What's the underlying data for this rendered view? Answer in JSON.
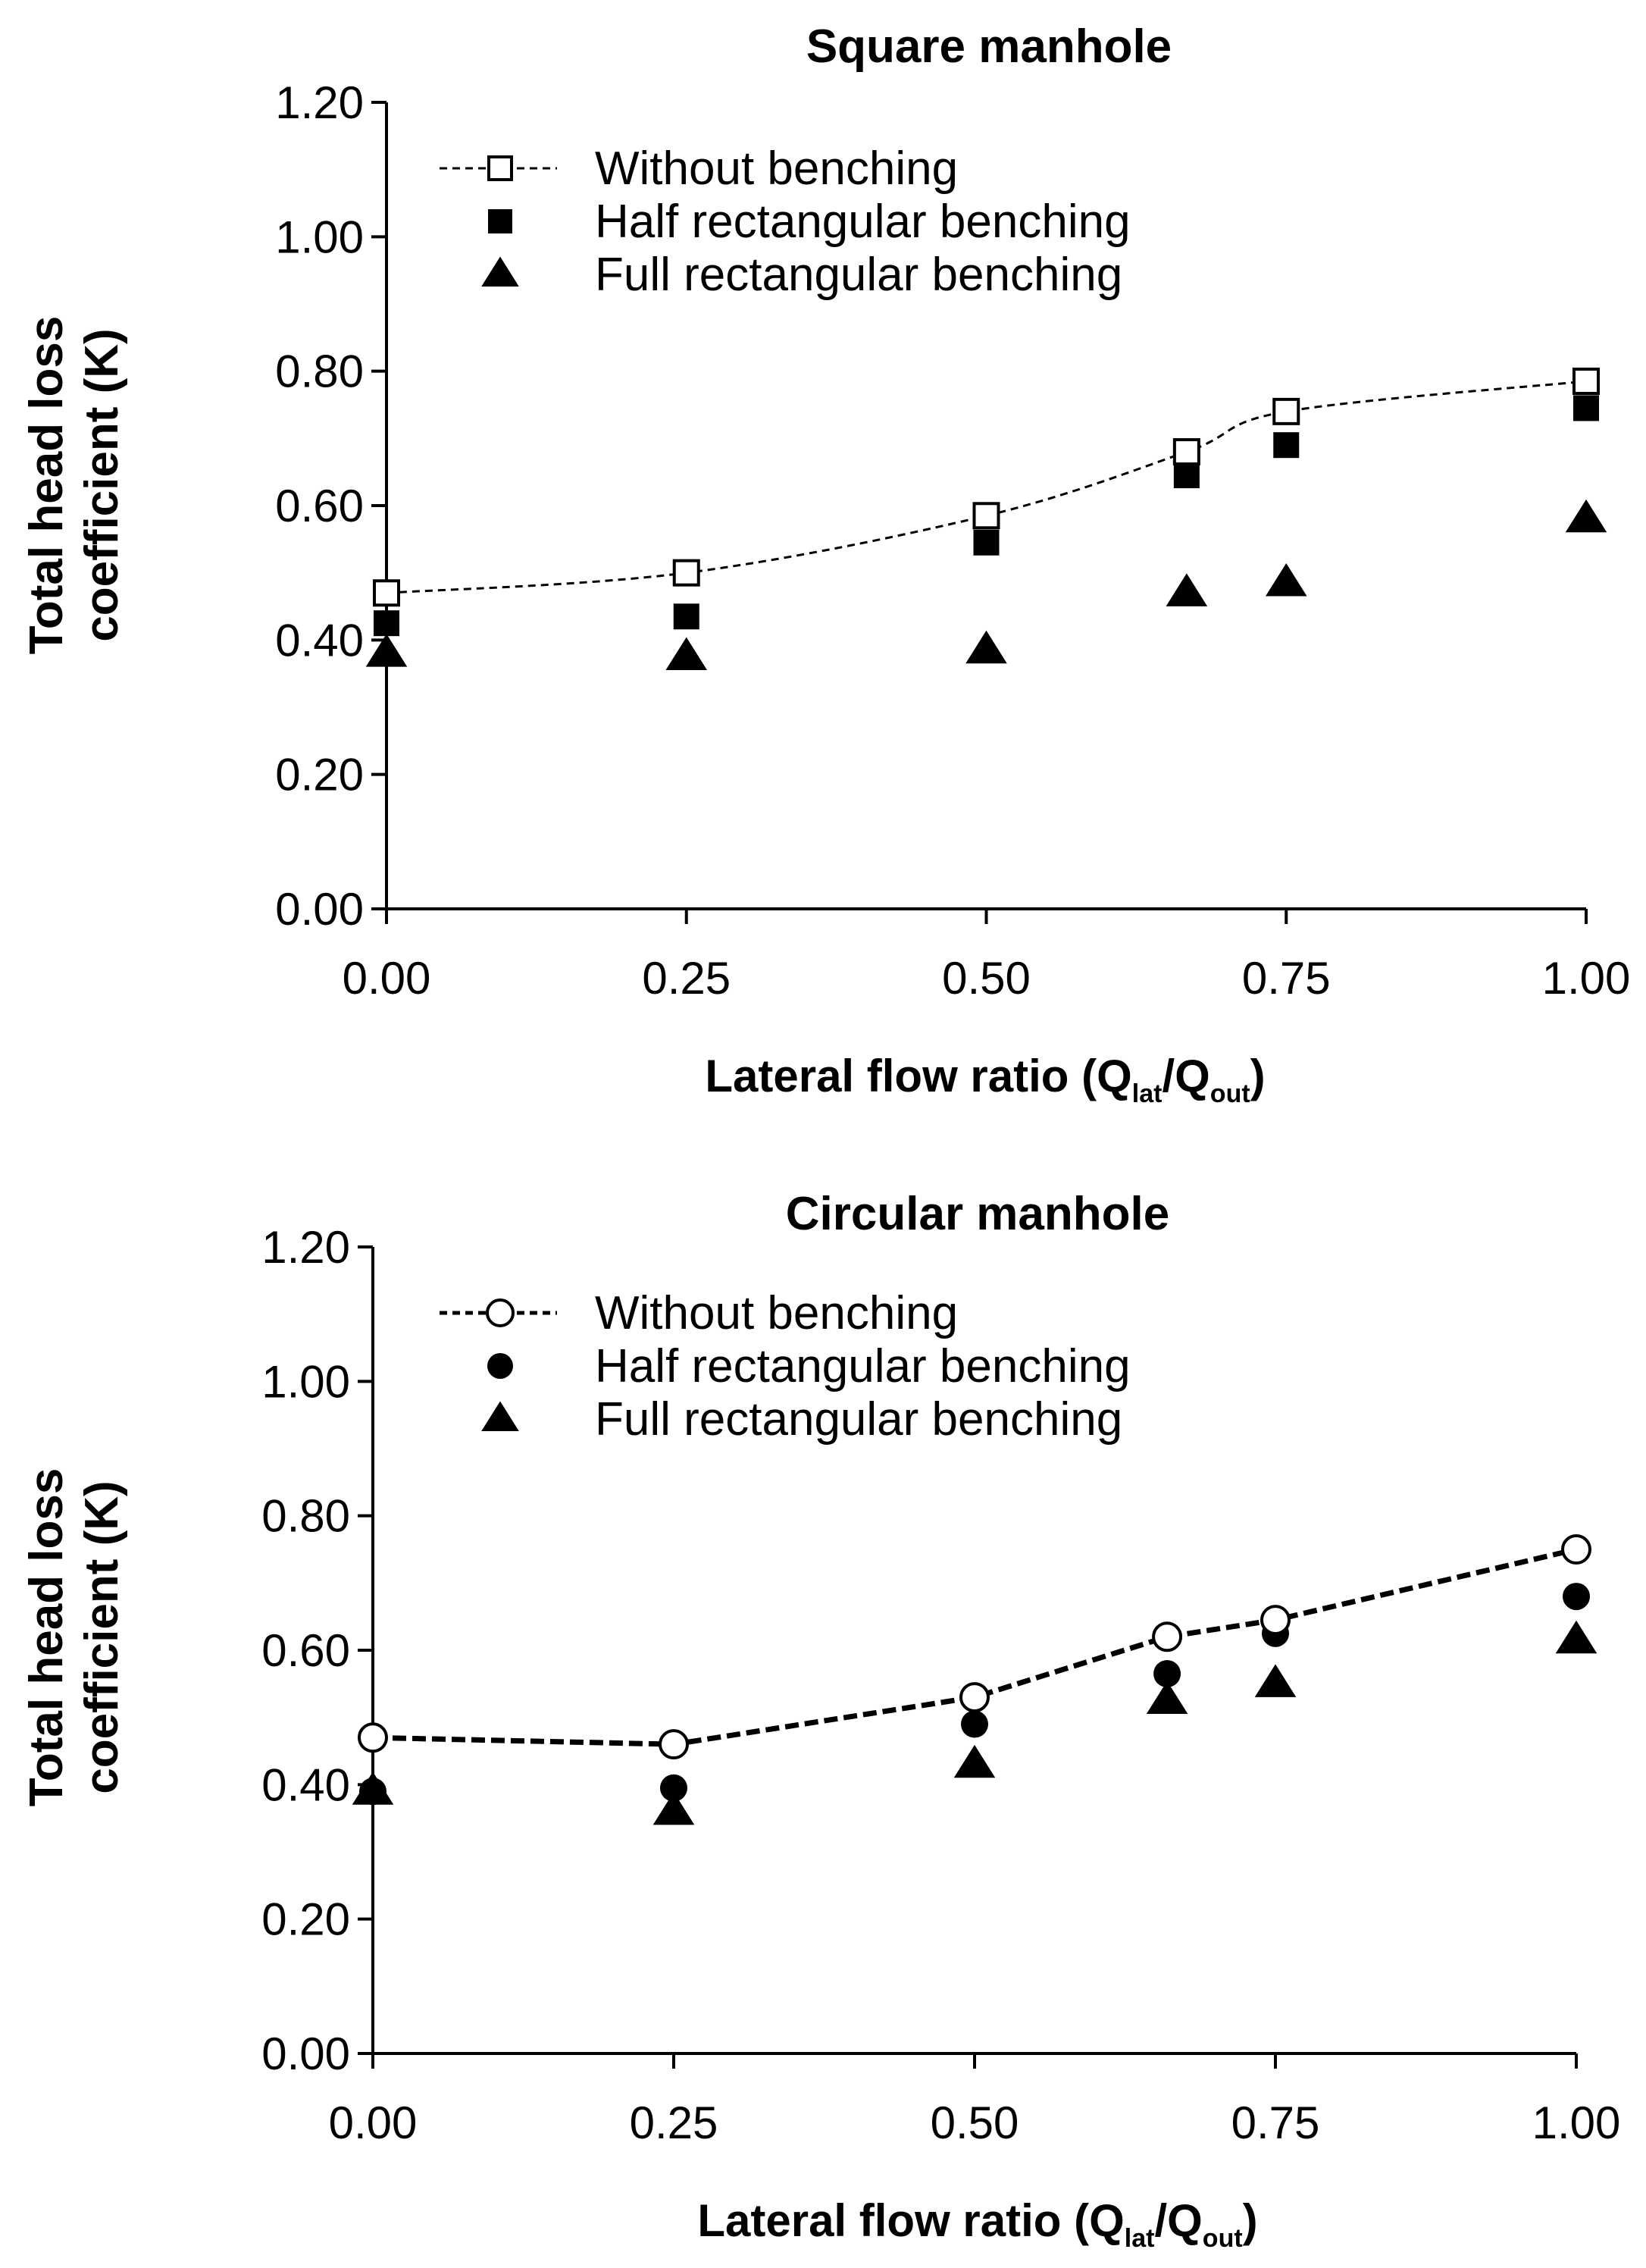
{
  "chart_data": [
    {
      "type": "scatter",
      "title": "Square manhole",
      "xlabel": {
        "main": "Lateral flow ratio (Q",
        "sub1": "lat",
        "mid": "/Q",
        "sub2": "out",
        "end": ")"
      },
      "ylabel": [
        "Total head loss",
        "coefficient (K)"
      ],
      "xlim": [
        0,
        1
      ],
      "ylim": [
        0,
        1.2
      ],
      "xticks": [
        "0.00",
        "0.25",
        "0.50",
        "0.75",
        "1.00"
      ],
      "yticks": [
        "0.00",
        "0.20",
        "0.40",
        "0.60",
        "0.80",
        "1.00",
        "1.20"
      ],
      "grid": false,
      "legend_position": "top-left",
      "series": [
        {
          "name": "Without benching",
          "marker": "open-square",
          "line": "dashed-smooth",
          "x": [
            0,
            0.25,
            0.5,
            0.667,
            0.75,
            1.0
          ],
          "y": [
            0.47,
            0.5,
            0.585,
            0.68,
            0.74,
            0.785
          ]
        },
        {
          "name": "Half rectangular benching",
          "marker": "filled-square",
          "line": "none",
          "x": [
            0,
            0.25,
            0.5,
            0.667,
            0.75,
            1.0
          ],
          "y": [
            0.425,
            0.435,
            0.545,
            0.645,
            0.69,
            0.745
          ]
        },
        {
          "name": "Full rectangular benching",
          "marker": "filled-triangle",
          "line": "none",
          "x": [
            0,
            0.25,
            0.5,
            0.667,
            0.75,
            1.0
          ],
          "y": [
            0.38,
            0.375,
            0.385,
            0.47,
            0.485,
            0.58
          ]
        }
      ]
    },
    {
      "type": "scatter",
      "title": "Circular manhole",
      "xlabel": {
        "main": "Lateral flow ratio (Q",
        "sub1": "lat",
        "mid": "/Q",
        "sub2": "out",
        "end": ")"
      },
      "ylabel": [
        "Total head loss",
        "coefficient (K)"
      ],
      "xlim": [
        0,
        1
      ],
      "ylim": [
        0,
        1.2
      ],
      "xticks": [
        "0.00",
        "0.25",
        "0.50",
        "0.75",
        "1.00"
      ],
      "yticks": [
        "0.00",
        "0.20",
        "0.40",
        "0.60",
        "0.80",
        "1.00",
        "1.20"
      ],
      "grid": false,
      "legend_position": "top-left",
      "series": [
        {
          "name": "Without benching",
          "marker": "open-circle",
          "line": "dashed-bold",
          "x": [
            0,
            0.25,
            0.5,
            0.66,
            0.75,
            1.0
          ],
          "y": [
            0.47,
            0.46,
            0.53,
            0.62,
            0.645,
            0.75
          ]
        },
        {
          "name": "Half rectangular benching",
          "marker": "filled-circle",
          "line": "none",
          "x": [
            0,
            0.25,
            0.5,
            0.66,
            0.75,
            1.0
          ],
          "y": [
            0.39,
            0.395,
            0.49,
            0.565,
            0.625,
            0.68
          ]
        },
        {
          "name": "Full rectangular benching",
          "marker": "filled-triangle",
          "line": "none",
          "x": [
            0,
            0.25,
            0.5,
            0.66,
            0.75,
            1.0
          ],
          "y": [
            0.39,
            0.36,
            0.43,
            0.525,
            0.55,
            0.615
          ]
        }
      ]
    }
  ]
}
